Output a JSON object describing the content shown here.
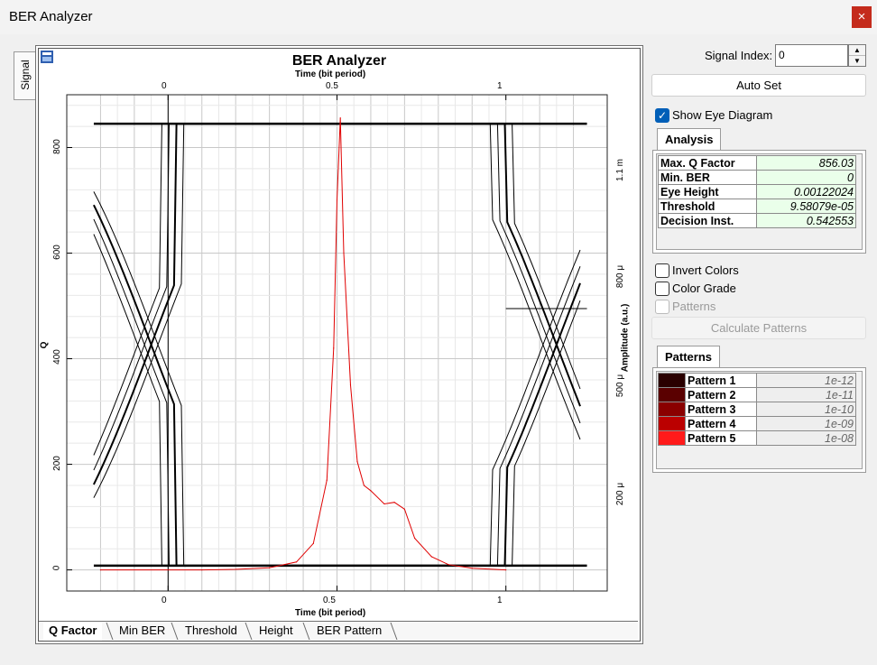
{
  "window": {
    "title": "BER Analyzer",
    "close_glyph": "×"
  },
  "side_tab": {
    "label": "Signal"
  },
  "plot": {
    "title": "BER Analyzer",
    "x_axis_top_label": "Time (bit period)",
    "x_axis_bottom_label": "Time (bit period)",
    "y_left_label": "Q",
    "y_right_label": "Amplitude (a.u.)",
    "x_ticks": [
      "0",
      "0.5",
      "1"
    ],
    "y_left_ticks": [
      "0",
      "200",
      "400",
      "600",
      "800"
    ],
    "y_right_ticks": [
      "200 μ",
      "500 μ",
      "800 μ",
      "1.1 m"
    ]
  },
  "chart_data": {
    "type": "line",
    "series": [
      {
        "name": "Q Factor",
        "color": "#e00000",
        "x": [
          -0.2,
          0.1,
          0.2,
          0.3,
          0.38,
          0.43,
          0.47,
          0.49,
          0.5,
          0.51,
          0.52,
          0.54,
          0.56,
          0.58,
          0.6,
          0.64,
          0.67,
          0.7,
          0.73,
          0.78,
          0.83,
          0.9,
          1.0
        ],
        "y": [
          0,
          0,
          1,
          4,
          15,
          50,
          170,
          420,
          700,
          856,
          600,
          350,
          205,
          160,
          150,
          125,
          128,
          115,
          60,
          25,
          10,
          3,
          0
        ]
      }
    ],
    "x_range": [
      -0.3,
      1.3
    ],
    "y_left_range": [
      -40,
      900
    ],
    "y_right_range": [
      "200 μ",
      "1.1 m"
    ],
    "grid": true
  },
  "bottom_tabs": [
    "Q Factor",
    "Min BER",
    "Threshold",
    "Height",
    "BER Pattern"
  ],
  "controls": {
    "signal_index_label": "Signal Index:",
    "signal_index_value": "0",
    "auto_set": "Auto Set",
    "show_eye_diagram": "Show Eye Diagram",
    "invert_colors": "Invert Colors",
    "color_grade": "Color Grade",
    "patterns_checkbox": "Patterns",
    "calculate_patterns": "Calculate Patterns"
  },
  "analysis": {
    "tab": "Analysis",
    "rows": [
      {
        "name": "Max. Q Factor",
        "value": "856.03"
      },
      {
        "name": "Min. BER",
        "value": "0"
      },
      {
        "name": "Eye Height",
        "value": "0.00122024"
      },
      {
        "name": "Threshold",
        "value": "9.58079e-05"
      },
      {
        "name": "Decision Inst.",
        "value": "0.542553"
      }
    ]
  },
  "patterns": {
    "tab": "Patterns",
    "rows": [
      {
        "name": "Pattern 1",
        "value": "1e-12",
        "color": "#2a0000"
      },
      {
        "name": "Pattern 2",
        "value": "1e-11",
        "color": "#5a0000"
      },
      {
        "name": "Pattern 3",
        "value": "1e-10",
        "color": "#8a0000"
      },
      {
        "name": "Pattern 4",
        "value": "1e-09",
        "color": "#bb0000"
      },
      {
        "name": "Pattern 5",
        "value": "1e-08",
        "color": "#ff1a1a"
      }
    ]
  }
}
